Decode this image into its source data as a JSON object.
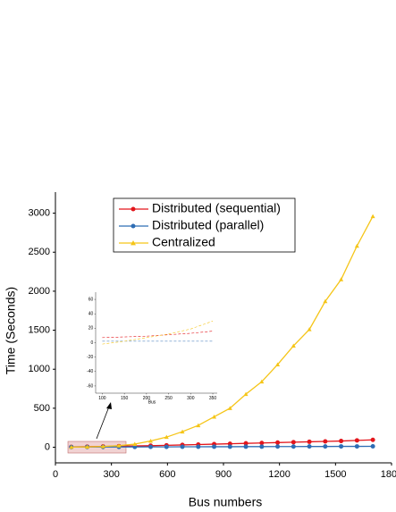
{
  "chart_data": [
    {
      "type": "line",
      "xlabel": "Bus numbers",
      "ylabel": "Time (Seconds)",
      "x": [
        85,
        170,
        255,
        340,
        425,
        510,
        595,
        680,
        765,
        850,
        935,
        1020,
        1105,
        1190,
        1275,
        1360,
        1445,
        1530,
        1615,
        1700
      ],
      "series": [
        {
          "name": "Distributed (sequential)",
          "color": "#e3151b",
          "marker": "circle",
          "values": [
            5,
            8,
            10,
            14,
            17,
            20,
            25,
            30,
            35,
            40,
            45,
            50,
            55,
            60,
            65,
            70,
            75,
            80,
            88,
            95
          ]
        },
        {
          "name": "Distributed (parallel)",
          "color": "#2e6db4",
          "marker": "circle",
          "values": [
            2,
            3,
            3,
            4,
            4,
            5,
            5,
            6,
            6,
            7,
            7,
            8,
            8,
            9,
            9,
            10,
            10,
            11,
            11,
            12
          ]
        },
        {
          "name": "Centralized",
          "color": "#f5c518",
          "marker": "triangle",
          "values": [
            2,
            5,
            10,
            20,
            40,
            80,
            130,
            200,
            280,
            390,
            500,
            680,
            840,
            1060,
            1300,
            1510,
            1870,
            2150,
            2580,
            2960
          ]
        }
      ],
      "xlim": [
        0,
        1800
      ],
      "xticks": [
        0,
        300,
        600,
        900,
        1200,
        1500,
        1800
      ],
      "ylim": [
        -200,
        3270
      ],
      "yticks": [
        0,
        500,
        1000,
        1500,
        2000,
        2500,
        3000
      ]
    },
    {
      "type": "line",
      "xlabel": "Bus",
      "x": [
        100,
        150,
        200,
        250,
        300,
        350
      ],
      "series": [
        {
          "color": "#e3151b",
          "values": [
            7,
            8,
            9,
            11,
            13,
            16
          ]
        },
        {
          "color": "#2e6db4",
          "values": [
            2,
            2,
            2,
            2,
            2,
            2
          ]
        },
        {
          "color": "#f5c518",
          "values": [
            -2,
            2,
            7,
            12,
            19,
            30
          ]
        }
      ],
      "xlim": [
        85,
        360
      ],
      "xticks": [
        100,
        150,
        200,
        250,
        300,
        350
      ],
      "ylim": [
        -70,
        70
      ],
      "yticks": [
        60,
        40,
        20,
        0,
        -20,
        -40,
        -60
      ]
    }
  ]
}
